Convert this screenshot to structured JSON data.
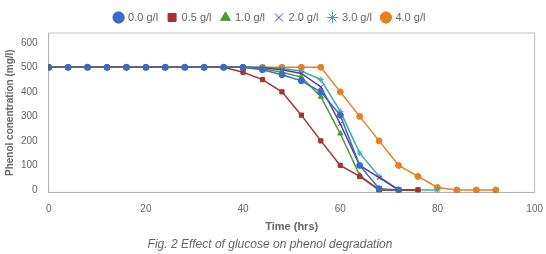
{
  "chart_data": {
    "type": "line",
    "title": "Fig. 2 Effect of glucose on phenol degradation",
    "xlabel": "Time (hrs)",
    "ylabel": "Phenol conentration (mg/l)",
    "xlim": [
      0,
      100
    ],
    "ylim": [
      -10,
      640
    ],
    "xticks": [
      0,
      20,
      40,
      60,
      80,
      100
    ],
    "yticks": [
      0,
      100,
      200,
      300,
      400,
      500,
      600
    ],
    "grid": false,
    "legend": "top",
    "series": [
      {
        "name": "0.0 g/l",
        "color": "#3A6BC9",
        "marker": "circle",
        "x": [
          0,
          4,
          8,
          12,
          16,
          20,
          24,
          28,
          32,
          36,
          40,
          44,
          48,
          52,
          56,
          60,
          64,
          68,
          72
        ],
        "values": [
          500,
          500,
          500,
          500,
          500,
          500,
          500,
          500,
          500,
          500,
          500,
          490,
          470,
          445,
          400,
          305,
          100,
          5,
          0
        ]
      },
      {
        "name": "0.5 g/l",
        "color": "#A83232",
        "marker": "square",
        "x": [
          0,
          4,
          8,
          12,
          16,
          20,
          24,
          28,
          32,
          36,
          40,
          44,
          48,
          52,
          56,
          60,
          64,
          68,
          72,
          76
        ],
        "values": [
          500,
          500,
          500,
          500,
          500,
          500,
          500,
          500,
          500,
          500,
          480,
          450,
          400,
          305,
          200,
          100,
          55,
          0,
          0,
          0
        ]
      },
      {
        "name": "1.0 g/l",
        "color": "#4E9A32",
        "marker": "triangle",
        "x": [
          0,
          4,
          8,
          12,
          16,
          20,
          24,
          28,
          32,
          36,
          40,
          44,
          48,
          52,
          56,
          60,
          64,
          68,
          72,
          76
        ],
        "values": [
          500,
          500,
          500,
          500,
          500,
          500,
          500,
          500,
          500,
          500,
          500,
          495,
          480,
          460,
          380,
          230,
          60,
          0,
          0,
          0
        ]
      },
      {
        "name": "2.0 g/l",
        "color": "#5B3A9E",
        "marker": "x",
        "x": [
          0,
          4,
          8,
          12,
          16,
          20,
          24,
          28,
          32,
          36,
          40,
          44,
          48,
          52,
          56,
          60,
          64,
          68,
          72,
          76
        ],
        "values": [
          500,
          500,
          500,
          500,
          500,
          500,
          500,
          500,
          500,
          500,
          500,
          498,
          490,
          475,
          420,
          270,
          100,
          50,
          0,
          0
        ]
      },
      {
        "name": "3.0 g/l",
        "color": "#3AABAB",
        "marker": "star",
        "x": [
          0,
          4,
          8,
          12,
          16,
          20,
          24,
          28,
          32,
          36,
          40,
          44,
          48,
          52,
          56,
          60,
          64,
          68,
          72,
          76,
          80
        ],
        "values": [
          500,
          500,
          500,
          500,
          500,
          500,
          500,
          500,
          500,
          500,
          500,
          500,
          495,
          485,
          450,
          320,
          150,
          55,
          0,
          0,
          0
        ]
      },
      {
        "name": "4.0 g/l",
        "color": "#E88020",
        "marker": "circle",
        "x": [
          0,
          4,
          8,
          12,
          16,
          20,
          24,
          28,
          32,
          36,
          40,
          44,
          48,
          52,
          56,
          60,
          64,
          68,
          72,
          76,
          80,
          84,
          88,
          92
        ],
        "values": [
          500,
          500,
          500,
          500,
          500,
          500,
          500,
          500,
          500,
          500,
          500,
          500,
          500,
          500,
          500,
          400,
          300,
          200,
          100,
          55,
          10,
          0,
          0,
          0
        ]
      }
    ]
  }
}
